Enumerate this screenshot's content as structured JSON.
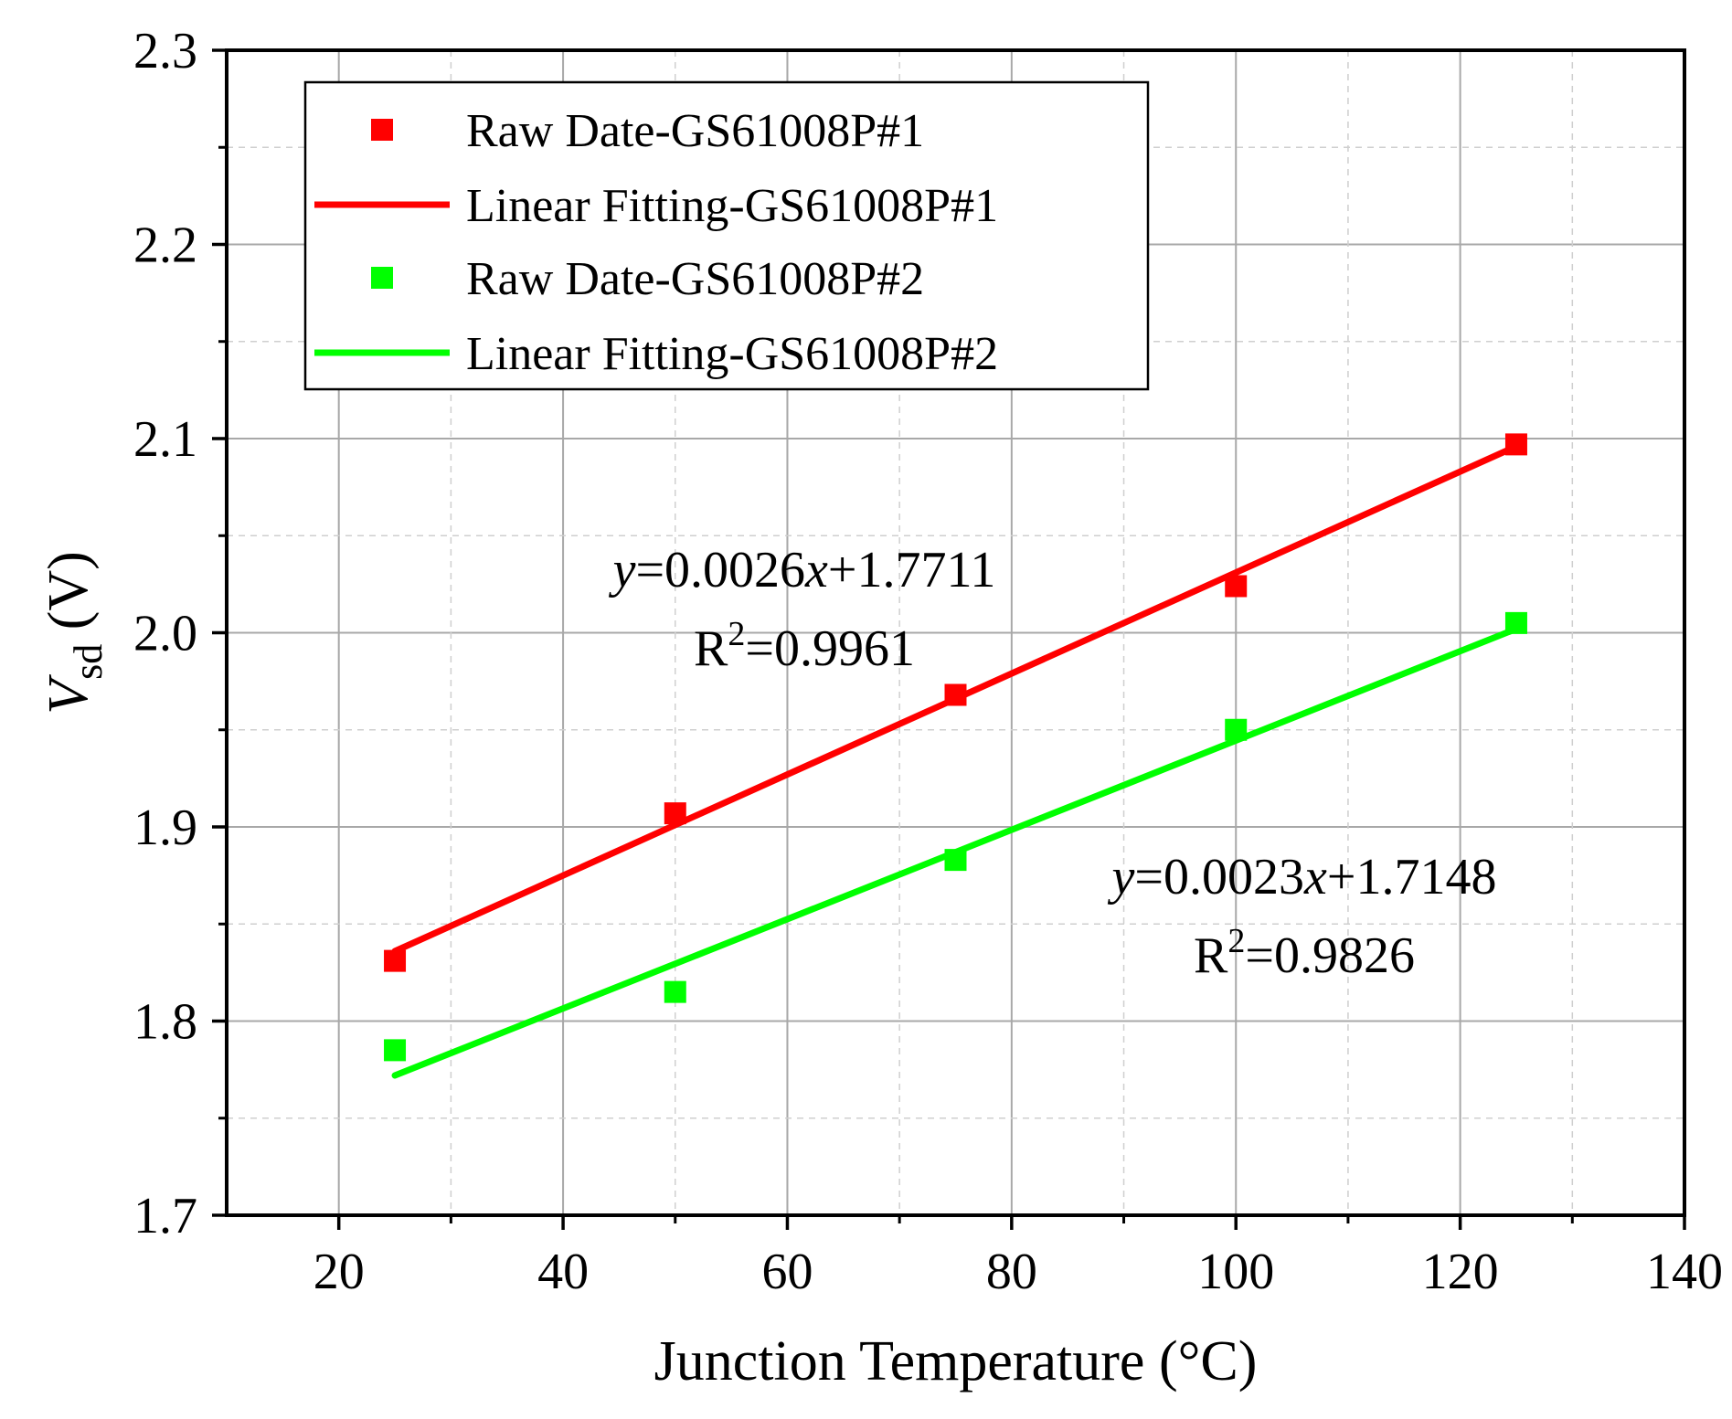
{
  "chart_data": {
    "type": "scatter",
    "xlabel": "Junction Temperature (°C)",
    "ylabel": {
      "var": "V",
      "sub": "sd",
      "unit": " (V)"
    },
    "xlim": [
      10,
      140
    ],
    "ylim": [
      1.7,
      2.3
    ],
    "xticks": [
      20,
      40,
      60,
      80,
      100,
      120,
      140
    ],
    "yticks": [
      1.7,
      1.8,
      1.9,
      2.0,
      2.1,
      2.2,
      2.3
    ],
    "xtick_labels": [
      "20",
      "40",
      "60",
      "80",
      "100",
      "120",
      "140"
    ],
    "ytick_labels": [
      "1.7",
      "1.8",
      "1.9",
      "2.0",
      "2.1",
      "2.2",
      "2.3"
    ],
    "grid": true,
    "legend_position": "top-left",
    "series": [
      {
        "name": "Raw Date-GS61008P#1",
        "kind": "markers",
        "color": "#ff0000",
        "x": [
          25,
          50,
          75,
          100,
          125
        ],
        "y": [
          1.831,
          1.907,
          1.968,
          2.024,
          2.097
        ]
      },
      {
        "name": "Linear Fitting-GS61008P#1",
        "kind": "line",
        "color": "#ff0000",
        "x": [
          25,
          125
        ],
        "y": [
          1.836,
          2.096
        ]
      },
      {
        "name": "Raw Date-GS61008P#2",
        "kind": "markers",
        "color": "#00ff00",
        "x": [
          25,
          50,
          75,
          100,
          125
        ],
        "y": [
          1.785,
          1.815,
          1.883,
          1.95,
          2.005
        ]
      },
      {
        "name": "Linear Fitting-GS61008P#2",
        "kind": "line",
        "color": "#00ff00",
        "x": [
          25,
          125
        ],
        "y": [
          1.772,
          2.002
        ]
      }
    ],
    "annotations": [
      {
        "eq_lhs": "y",
        "eq_mid": "=0.0026",
        "eq_var": "x",
        "eq_rhs": "+1.7711",
        "r_label": "R",
        "r_sup": "2",
        "r_value": "=0.9961"
      },
      {
        "eq_lhs": "y",
        "eq_mid": "=0.0023",
        "eq_var": "x",
        "eq_rhs": "+1.7148",
        "r_label": "R",
        "r_sup": "2",
        "r_value": "=0.9826"
      }
    ]
  }
}
